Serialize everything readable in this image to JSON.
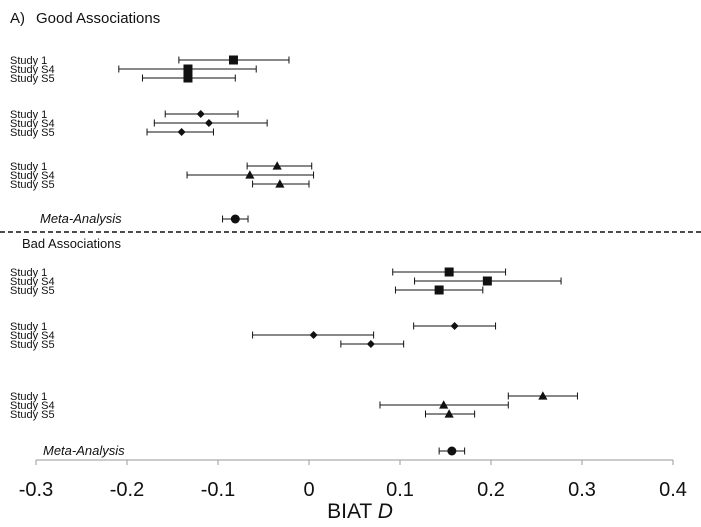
{
  "chart_data": {
    "type": "scatter",
    "subtype": "forest-plot",
    "panel_label": "A)",
    "xlabel_text": "BIAT ",
    "xlabel_symbol": "D",
    "xlim": [
      -0.3,
      0.4
    ],
    "xticks": [
      -0.3,
      -0.2,
      -0.1,
      0,
      0.1,
      0.2,
      0.3,
      0.4
    ],
    "xtick_labels": [
      "-0.3",
      "-0.2",
      "-0.1",
      "0",
      "0.1",
      "0.2",
      "0.3",
      "0.4"
    ],
    "grid": false,
    "separator": "dashed",
    "sections": [
      {
        "title": "Good Associations",
        "groups": [
          {
            "marker": "square",
            "rows": [
              {
                "label": "Study 1",
                "estimate": -0.083,
                "ci": [
                  -0.143,
                  -0.022
                ]
              },
              {
                "label": "Study S4",
                "estimate": -0.133,
                "ci": [
                  -0.209,
                  -0.058
                ]
              },
              {
                "label": "Study S5",
                "estimate": -0.133,
                "ci": [
                  -0.183,
                  -0.081
                ]
              }
            ]
          },
          {
            "marker": "diamond",
            "rows": [
              {
                "label": "Study 1",
                "estimate": -0.119,
                "ci": [
                  -0.158,
                  -0.078
                ]
              },
              {
                "label": "Study S4",
                "estimate": -0.11,
                "ci": [
                  -0.17,
                  -0.046
                ]
              },
              {
                "label": "Study S5",
                "estimate": -0.14,
                "ci": [
                  -0.178,
                  -0.105
                ]
              }
            ]
          },
          {
            "marker": "triangle",
            "rows": [
              {
                "label": "Study 1",
                "estimate": -0.035,
                "ci": [
                  -0.068,
                  0.003
                ]
              },
              {
                "label": "Study S4",
                "estimate": -0.065,
                "ci": [
                  -0.134,
                  0.005
                ]
              },
              {
                "label": "Study S5",
                "estimate": -0.032,
                "ci": [
                  -0.062,
                  0.0
                ]
              }
            ]
          }
        ],
        "meta": {
          "label": "Meta-Analysis",
          "estimate": -0.081,
          "ci": [
            -0.095,
            -0.067
          ]
        }
      },
      {
        "title": "Bad Associations",
        "groups": [
          {
            "marker": "square",
            "rows": [
              {
                "label": "Study 1",
                "estimate": 0.154,
                "ci": [
                  0.092,
                  0.216
                ]
              },
              {
                "label": "Study S4",
                "estimate": 0.196,
                "ci": [
                  0.116,
                  0.277
                ]
              },
              {
                "label": "Study S5",
                "estimate": 0.143,
                "ci": [
                  0.095,
                  0.191
                ]
              }
            ]
          },
          {
            "marker": "diamond",
            "rows": [
              {
                "label": "Study 1",
                "estimate": 0.16,
                "ci": [
                  0.115,
                  0.205
                ]
              },
              {
                "label": "Study S4",
                "estimate": 0.005,
                "ci": [
                  -0.062,
                  0.071
                ]
              },
              {
                "label": "Study S5",
                "estimate": 0.068,
                "ci": [
                  0.035,
                  0.104
                ]
              }
            ]
          },
          {
            "marker": "triangle",
            "rows": [
              {
                "label": "Study 1",
                "estimate": 0.257,
                "ci": [
                  0.219,
                  0.295
                ]
              },
              {
                "label": "Study S4",
                "estimate": 0.148,
                "ci": [
                  0.078,
                  0.219
                ]
              },
              {
                "label": "Study S5",
                "estimate": 0.154,
                "ci": [
                  0.128,
                  0.182
                ]
              }
            ]
          }
        ],
        "meta": {
          "label": "Meta-Analysis",
          "estimate": 0.157,
          "ci": [
            0.143,
            0.171
          ]
        }
      }
    ]
  }
}
